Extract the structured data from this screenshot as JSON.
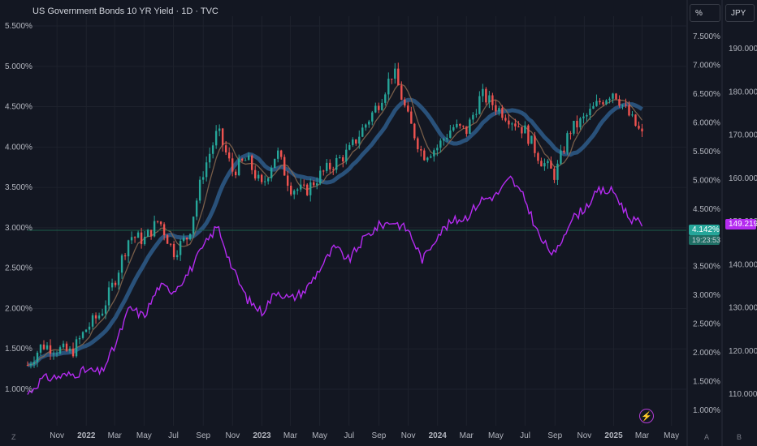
{
  "header": {
    "title": "US Government Bonds 10 YR Yield · 1D · TVC",
    "unit_percent": "%",
    "unit_currency": "JPY"
  },
  "badges": {
    "yield_value": "4.142%",
    "countdown": "19:23:53",
    "jpy_value": "149.219"
  },
  "corners": {
    "left": "Z",
    "a": "A",
    "b": "B"
  },
  "colors": {
    "background": "#131722",
    "grid": "#1e222d",
    "up": "#26a69a",
    "down": "#ef5350",
    "jpy_line": "#b42bf0",
    "ma_blue": "#2e5c8a",
    "ma_brown": "#8a6a50",
    "price_line": "#1b5e4a"
  },
  "chart_data": {
    "type": "line",
    "title": "US Government Bonds 10 YR Yield · 1D · TVC",
    "x_ticks": [
      "Nov",
      "2022",
      "Mar",
      "May",
      "Jul",
      "Sep",
      "Nov",
      "2023",
      "Mar",
      "May",
      "Jul",
      "Sep",
      "Nov",
      "2024",
      "Mar",
      "May",
      "Jul",
      "Sep",
      "Nov",
      "2025",
      "Mar",
      "May"
    ],
    "left_axis_ticks": [
      "5.500%",
      "5.000%",
      "4.500%",
      "4.000%",
      "3.500%",
      "3.000%",
      "2.500%",
      "2.000%",
      "1.500%",
      "1.000%"
    ],
    "right_axis_pct_ticks": [
      "7.500%",
      "7.000%",
      "6.500%",
      "6.000%",
      "5.500%",
      "5.000%",
      "4.500%",
      "3.500%",
      "3.000%",
      "2.500%",
      "2.000%",
      "1.500%",
      "1.000%"
    ],
    "right_axis_jpy_ticks": [
      "190.000",
      "180.000",
      "170.000",
      "160.000",
      "150.000",
      "140.000",
      "130.000",
      "120.000",
      "110.000"
    ],
    "left_ylim": [
      0.9,
      5.5
    ],
    "jpy_ylim": [
      105,
      195
    ],
    "series": [
      {
        "name": "US Government Bonds 10 YR Yield",
        "units": "%",
        "points": [
          [
            "2021-09-01",
            1.3
          ],
          [
            "2021-10-01",
            1.55
          ],
          [
            "2021-11-01",
            1.5
          ],
          [
            "2021-12-01",
            1.45
          ],
          [
            "2022-01-01",
            1.75
          ],
          [
            "2022-02-01",
            1.95
          ],
          [
            "2022-03-01",
            2.35
          ],
          [
            "2022-04-01",
            2.9
          ],
          [
            "2022-05-01",
            2.85
          ],
          [
            "2022-06-01",
            3.1
          ],
          [
            "2022-07-01",
            2.7
          ],
          [
            "2022-08-01",
            2.9
          ],
          [
            "2022-09-01",
            3.7
          ],
          [
            "2022-10-01",
            4.2
          ],
          [
            "2022-11-01",
            3.7
          ],
          [
            "2022-12-01",
            3.85
          ],
          [
            "2023-01-01",
            3.5
          ],
          [
            "2023-02-01",
            3.95
          ],
          [
            "2023-03-01",
            3.5
          ],
          [
            "2023-04-01",
            3.45
          ],
          [
            "2023-05-01",
            3.65
          ],
          [
            "2023-06-01",
            3.8
          ],
          [
            "2023-07-01",
            3.95
          ],
          [
            "2023-08-01",
            4.25
          ],
          [
            "2023-09-01",
            4.55
          ],
          [
            "2023-10-01",
            4.95
          ],
          [
            "2023-11-01",
            4.35
          ],
          [
            "2023-12-01",
            3.9
          ],
          [
            "2024-01-01",
            4.0
          ],
          [
            "2024-02-01",
            4.25
          ],
          [
            "2024-03-01",
            4.2
          ],
          [
            "2024-04-01",
            4.65
          ],
          [
            "2024-05-01",
            4.5
          ],
          [
            "2024-06-01",
            4.35
          ],
          [
            "2024-07-01",
            4.2
          ],
          [
            "2024-08-01",
            3.85
          ],
          [
            "2024-09-01",
            3.65
          ],
          [
            "2024-10-01",
            4.2
          ],
          [
            "2024-11-01",
            4.35
          ],
          [
            "2024-12-01",
            4.55
          ],
          [
            "2025-01-01",
            4.7
          ],
          [
            "2025-02-01",
            4.4
          ],
          [
            "2025-03-01",
            4.142
          ]
        ]
      },
      {
        "name": "JPY",
        "units": "JPY",
        "points": [
          [
            "2021-09-01",
            110
          ],
          [
            "2021-10-01",
            113.5
          ],
          [
            "2021-11-01",
            114
          ],
          [
            "2021-12-01",
            114.5
          ],
          [
            "2022-01-01",
            115.5
          ],
          [
            "2022-02-01",
            115
          ],
          [
            "2022-03-01",
            121
          ],
          [
            "2022-04-01",
            130
          ],
          [
            "2022-05-01",
            128
          ],
          [
            "2022-06-01",
            135
          ],
          [
            "2022-07-01",
            134
          ],
          [
            "2022-08-01",
            138
          ],
          [
            "2022-09-01",
            144
          ],
          [
            "2022-10-01",
            149
          ],
          [
            "2022-11-01",
            139
          ],
          [
            "2022-12-01",
            132
          ],
          [
            "2023-01-01",
            129
          ],
          [
            "2023-02-01",
            134
          ],
          [
            "2023-03-01",
            132
          ],
          [
            "2023-04-01",
            134
          ],
          [
            "2023-05-01",
            139
          ],
          [
            "2023-06-01",
            144
          ],
          [
            "2023-07-01",
            141
          ],
          [
            "2023-08-01",
            146
          ],
          [
            "2023-09-01",
            149
          ],
          [
            "2023-10-01",
            150
          ],
          [
            "2023-11-01",
            148
          ],
          [
            "2023-12-01",
            141
          ],
          [
            "2024-01-01",
            147
          ],
          [
            "2024-02-01",
            150
          ],
          [
            "2024-03-01",
            151
          ],
          [
            "2024-04-01",
            155
          ],
          [
            "2024-05-01",
            156
          ],
          [
            "2024-06-01",
            160
          ],
          [
            "2024-07-01",
            155
          ],
          [
            "2024-08-01",
            146
          ],
          [
            "2024-09-01",
            142
          ],
          [
            "2024-10-01",
            150
          ],
          [
            "2024-11-01",
            153
          ],
          [
            "2024-12-01",
            157
          ],
          [
            "2025-01-01",
            157
          ],
          [
            "2025-02-01",
            151
          ],
          [
            "2025-03-01",
            149.219
          ]
        ]
      }
    ],
    "grid": true
  }
}
